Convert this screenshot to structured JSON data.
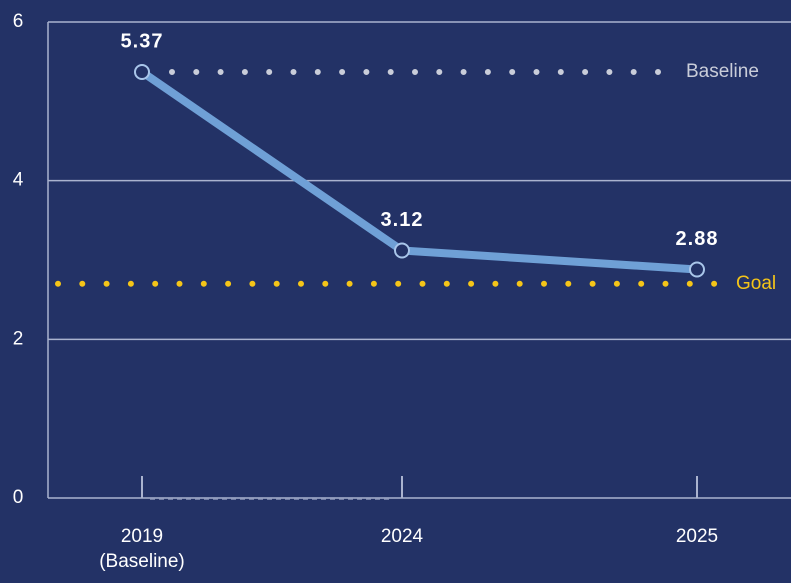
{
  "chart_data": {
    "type": "line",
    "categories": [
      "2019 (Baseline)",
      "2024",
      "2025"
    ],
    "values": [
      5.37,
      3.12,
      2.88
    ],
    "color": "#6fa0d6",
    "ylim": [
      0,
      6
    ],
    "yticks": [
      0,
      2,
      4,
      6
    ],
    "grid": true,
    "reference_lines": [
      {
        "label": "Baseline",
        "value": 5.37,
        "color": "#c9cdd9"
      },
      {
        "label": "Goal",
        "value": 2.7,
        "color": "#f5c518"
      }
    ]
  }
}
